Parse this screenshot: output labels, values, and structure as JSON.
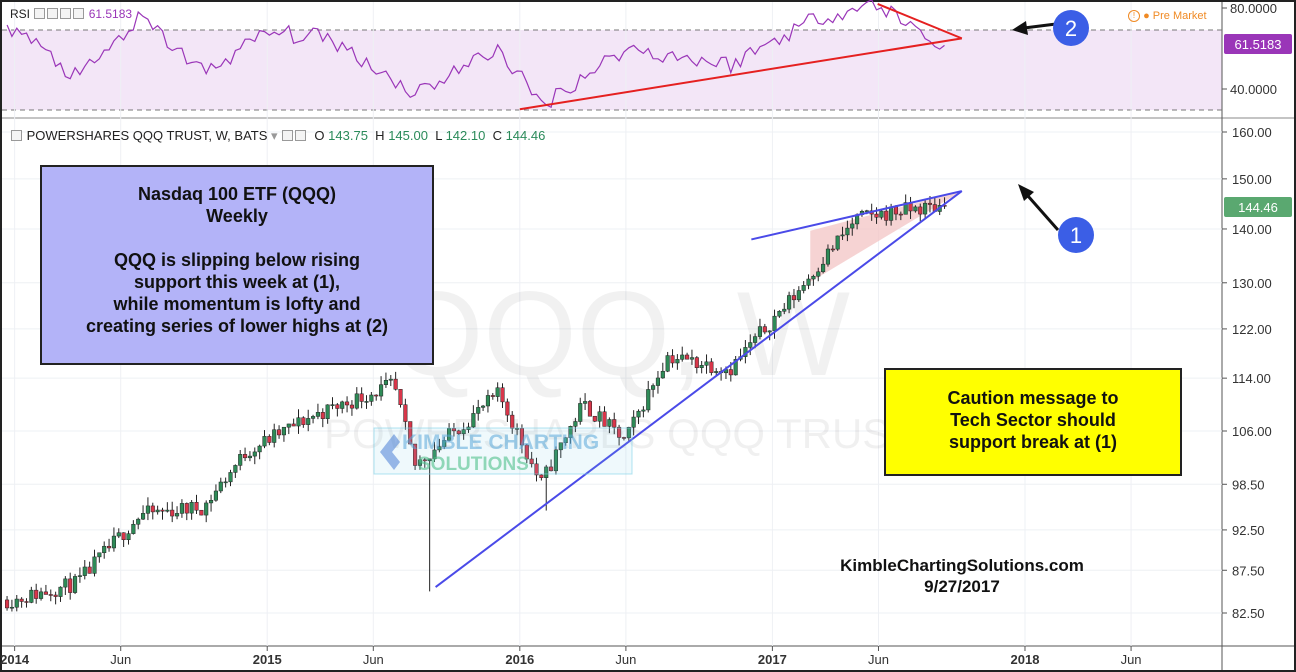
{
  "main_chart": {
    "legend": {
      "symbol": "POWERSHARES QQQ TRUST, W, BATS",
      "o_label": "O",
      "o": "143.75",
      "h_label": "H",
      "h": "145.00",
      "l_label": "L",
      "l": "142.10",
      "c_label": "C",
      "c": "144.46"
    },
    "last_price_tag": "144.46",
    "watermark_big": "QQQ, W",
    "watermark_small": "POWERSHARES QQQ TRUST",
    "logo_line1": "KIMBLE CHARTING",
    "logo_line2": "SOLUTIONS"
  },
  "rsi_panel": {
    "label": "RSI",
    "value": "61.5183",
    "value_tag": "61.5183",
    "premarket_label": "Pre Market"
  },
  "annotations": {
    "info_box": {
      "line1": "Nasdaq 100 ETF (QQQ)",
      "line2": "Weekly",
      "line3": "QQQ is slipping below rising",
      "line4": "support this week at (1),",
      "line5": "while momentum is lofty and",
      "line6": "creating series of lower highs at (2)"
    },
    "caution_box": {
      "line1": "Caution message to",
      "line2": "Tech Sector should",
      "line3": "support break at (1)"
    },
    "marker_1": "1",
    "marker_2": "2",
    "signature_site": "KimbleChartingSolutions.com",
    "signature_date": "9/27/2017"
  },
  "colors": {
    "up_candle": "#2e8b57",
    "down_candle": "#d9364a",
    "trendline_blue": "#4a4ae8",
    "trendline_red": "#e52020",
    "rsi_line": "#9a36b8",
    "rsi_band": "#f3e6f7",
    "wedge_fill": "#f3c4c4",
    "marker_blue": "#3b5ee6",
    "price_tag": "#5aa870"
  },
  "chart_data": [
    {
      "type": "candlestick",
      "title": "POWERSHARES QQQ TRUST, W, BATS",
      "y_ticks": [
        "160.00",
        "150.00",
        "140.00",
        "130.00",
        "122.00",
        "114.00",
        "106.00",
        "98.50",
        "92.50",
        "87.50",
        "82.50"
      ],
      "x_ticks": [
        "2014",
        "Jun",
        "2015",
        "Jun",
        "2016",
        "Jun",
        "2017",
        "Jun",
        "2018",
        "Jun"
      ],
      "ylim": [
        80.5,
        163
      ],
      "scale": "log",
      "last_close": 144.46,
      "trendlines": [
        {
          "name": "rising support",
          "from": [
            "2015-09",
            85.5
          ],
          "to": [
            "2017-10",
            147.5
          ]
        },
        {
          "name": "upper wedge",
          "from": [
            "2016-12",
            138
          ],
          "to": [
            "2017-10",
            147.5
          ]
        }
      ],
      "series": [
        {
          "date": "2014-01",
          "close": 84.0
        },
        {
          "date": "2014-04",
          "close": 86.0
        },
        {
          "date": "2014-07",
          "close": 94.5
        },
        {
          "date": "2014-10",
          "close": 95.5
        },
        {
          "date": "2014-12",
          "close": 103.0
        },
        {
          "date": "2015-03",
          "close": 108.0
        },
        {
          "date": "2015-07",
          "close": 113.0
        },
        {
          "date": "2015-08",
          "close": 101.0
        },
        {
          "date": "2015-12",
          "close": 111.5
        },
        {
          "date": "2016-02",
          "close": 98.5
        },
        {
          "date": "2016-04",
          "close": 110.0
        },
        {
          "date": "2016-06",
          "close": 104.5
        },
        {
          "date": "2016-08",
          "close": 117.5
        },
        {
          "date": "2016-11",
          "close": 115.5
        },
        {
          "date": "2017-02",
          "close": 127.5
        },
        {
          "date": "2017-05",
          "close": 142.0
        },
        {
          "date": "2017-07",
          "close": 143.5
        },
        {
          "date": "2017-09",
          "close": 144.46
        }
      ]
    },
    {
      "type": "line",
      "title": "RSI",
      "y_ticks": [
        "80.0000",
        "40.0000"
      ],
      "last_value": 61.5183,
      "trendlines": [
        {
          "name": "rising RSI support",
          "from": [
            "2016-01",
            30
          ],
          "to": [
            "2017-10",
            65
          ]
        },
        {
          "name": "RSI lower highs",
          "from": [
            "2017-06",
            82
          ],
          "to": [
            "2017-10",
            65
          ]
        }
      ],
      "series": [
        {
          "date": "2014-01",
          "value": 70
        },
        {
          "date": "2014-04",
          "value": 45
        },
        {
          "date": "2014-07",
          "value": 75
        },
        {
          "date": "2014-10",
          "value": 48
        },
        {
          "date": "2015-01",
          "value": 68
        },
        {
          "date": "2015-04",
          "value": 65
        },
        {
          "date": "2015-08",
          "value": 38
        },
        {
          "date": "2015-12",
          "value": 60
        },
        {
          "date": "2016-02",
          "value": 32
        },
        {
          "date": "2016-06",
          "value": 60
        },
        {
          "date": "2016-11",
          "value": 52
        },
        {
          "date": "2017-03",
          "value": 75
        },
        {
          "date": "2017-06",
          "value": 82
        },
        {
          "date": "2017-09",
          "value": 61.5183
        }
      ]
    }
  ]
}
